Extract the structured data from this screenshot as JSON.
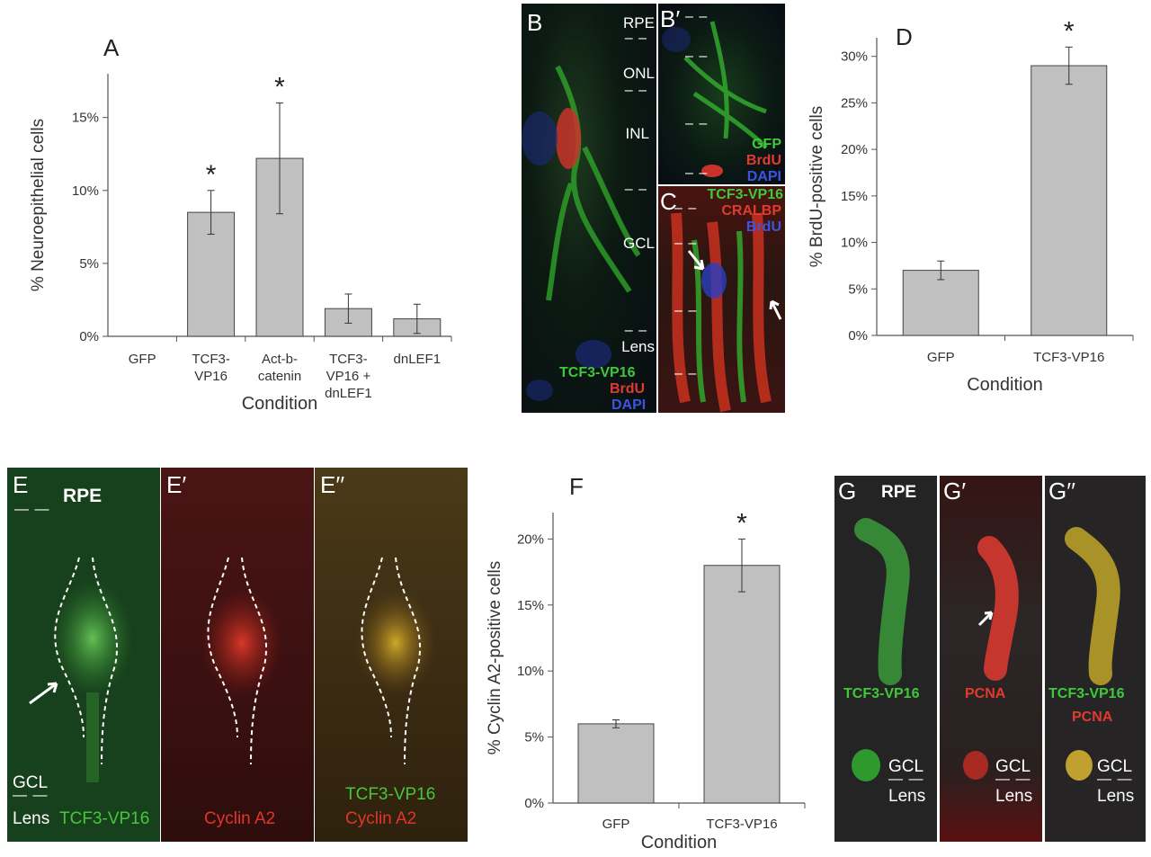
{
  "colors": {
    "bar": "#c0c0c0",
    "bar_edge": "#444444",
    "green": "#3ec93a",
    "red": "#e03b2e",
    "blue": "#3b55e0"
  },
  "chart_data": [
    {
      "panel": "A",
      "type": "bar",
      "categories": [
        "GFP",
        "TCF3-VP16",
        "Act-b-catenin",
        "TCF3-VP16 + dnLEF1",
        "dnLEF1"
      ],
      "category_lines": [
        [
          "GFP"
        ],
        [
          "TCF3-",
          "VP16"
        ],
        [
          "Act-b-",
          "catenin"
        ],
        [
          "TCF3-",
          "VP16 +",
          "dnLEF1"
        ],
        [
          "dnLEF1"
        ]
      ],
      "values": [
        0,
        8.5,
        12.2,
        1.9,
        1.2
      ],
      "errors": [
        0,
        1.5,
        3.8,
        1.0,
        1.0
      ],
      "significant": [
        false,
        true,
        true,
        false,
        false
      ],
      "xlabel": "Condition",
      "ylabel": "% Neuroepithelial cells",
      "ylim": [
        0,
        18
      ],
      "yticks": [
        0,
        5,
        10,
        15
      ],
      "ytick_labels": [
        "0%",
        "5%",
        "10%",
        "15%"
      ]
    },
    {
      "panel": "D",
      "type": "bar",
      "categories": [
        "GFP",
        "TCF3-VP16"
      ],
      "category_lines": [
        [
          "GFP"
        ],
        [
          "TCF3-VP16"
        ]
      ],
      "values": [
        7,
        29
      ],
      "errors": [
        1,
        2
      ],
      "significant": [
        false,
        true
      ],
      "xlabel": "Condition",
      "ylabel": "% BrdU-positive cells",
      "ylim": [
        0,
        32
      ],
      "yticks": [
        0,
        5,
        10,
        15,
        20,
        25,
        30
      ],
      "ytick_labels": [
        "0%",
        "5%",
        "10%",
        "15%",
        "20%",
        "25%",
        "30%"
      ]
    },
    {
      "panel": "F",
      "type": "bar",
      "categories": [
        "GFP",
        "TCF3-VP16"
      ],
      "category_lines": [
        [
          "GFP"
        ],
        [
          "TCF3-VP16"
        ]
      ],
      "values": [
        6,
        18
      ],
      "errors": [
        0.3,
        2
      ],
      "significant": [
        false,
        true
      ],
      "xlabel": "Condition",
      "ylabel": "% Cyclin A2-positive cells",
      "ylim": [
        0,
        22
      ],
      "yticks": [
        0,
        5,
        10,
        15,
        20
      ],
      "ytick_labels": [
        "0%",
        "5%",
        "10%",
        "15%",
        "20%"
      ]
    }
  ],
  "star": "*",
  "micro": {
    "B": {
      "label": "B",
      "layers": [
        "RPE",
        "ONL",
        "INL",
        "GCL",
        "Lens"
      ],
      "channels": [
        "TCF3-VP16",
        "BrdU",
        "DAPI"
      ]
    },
    "B2": {
      "label": "B′",
      "channels": [
        "GFP",
        "BrdU",
        "DAPI"
      ]
    },
    "C": {
      "label": "C",
      "channels": [
        "TCF3-VP16",
        "CRALBP",
        "BrdU"
      ]
    },
    "E": {
      "label": "E",
      "top": "RPE",
      "gcl": "GCL",
      "lens": "Lens",
      "channel": "TCF3-VP16"
    },
    "E2": {
      "label": "E′",
      "channel": "Cyclin A2"
    },
    "E3": {
      "label": "E′′",
      "channel1": "TCF3-VP16",
      "channel2": "Cyclin A2"
    },
    "G": {
      "label": "G",
      "top": "RPE",
      "channel": "TCF3-VP16",
      "gcl": "GCL",
      "lens": "Lens"
    },
    "G2": {
      "label": "G′",
      "channel": "PCNA",
      "gcl": "GCL",
      "lens": "Lens"
    },
    "G3": {
      "label": "G′′",
      "channel1": "TCF3-VP16",
      "channel2": "PCNA",
      "gcl": "GCL",
      "lens": "Lens"
    }
  }
}
